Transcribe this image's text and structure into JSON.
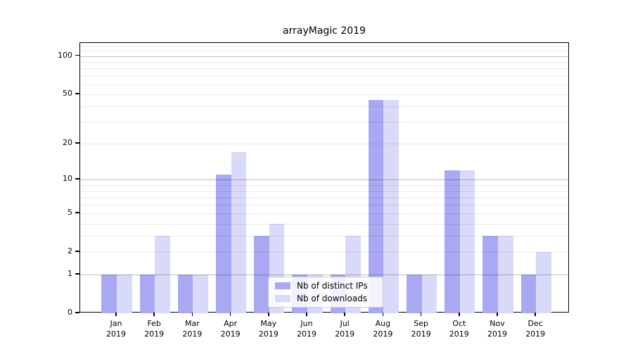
{
  "title": "arrayMagic 2019",
  "colors": {
    "ips_bar": "#a8a8f3",
    "downloads_bar": "#d9d9f9",
    "grid_minor": "rgba(0,0,0,0.08)",
    "grid_major": "rgba(0,0,0,0.25)",
    "axis": "#000000",
    "legend_border": "#cccccc"
  },
  "y_axis": {
    "tick_values": [
      0,
      1,
      2,
      5,
      10,
      20,
      50,
      100
    ],
    "tick_labels": [
      "0",
      "1",
      "2",
      "5",
      "10",
      "20",
      "50",
      "100"
    ],
    "major_gridlines": [
      1,
      10,
      100
    ],
    "minor_gridlines": [
      2,
      3,
      4,
      5,
      6,
      7,
      8,
      9,
      20,
      30,
      40,
      50,
      60,
      70,
      80,
      90,
      110,
      120
    ]
  },
  "legend": {
    "items": [
      {
        "label": "Nb of distinct IPs",
        "color_key": "ips_bar"
      },
      {
        "label": "Nb of downloads",
        "color_key": "downloads_bar"
      }
    ]
  },
  "chart_data": {
    "type": "bar",
    "title": "arrayMagic 2019",
    "categories": [
      "Jan 2019",
      "Feb 2019",
      "Mar 2019",
      "Apr 2019",
      "May 2019",
      "Jun 2019",
      "Jul 2019",
      "Aug 2019",
      "Sep 2019",
      "Oct 2019",
      "Nov 2019",
      "Dec 2019"
    ],
    "series": [
      {
        "name": "Nb of distinct IPs",
        "values": [
          1,
          1,
          1,
          11,
          3,
          1,
          1,
          45,
          1,
          12,
          3,
          1
        ]
      },
      {
        "name": "Nb of downloads",
        "values": [
          1,
          3,
          1,
          17,
          4,
          1,
          3,
          45,
          1,
          12,
          3,
          2
        ]
      }
    ],
    "yscale": "log1p",
    "yticks": [
      0,
      1,
      2,
      5,
      10,
      20,
      50,
      100
    ],
    "ylim": [
      0,
      127
    ],
    "grid": true,
    "legend_position": "lower center",
    "xlabel": "",
    "ylabel": ""
  }
}
